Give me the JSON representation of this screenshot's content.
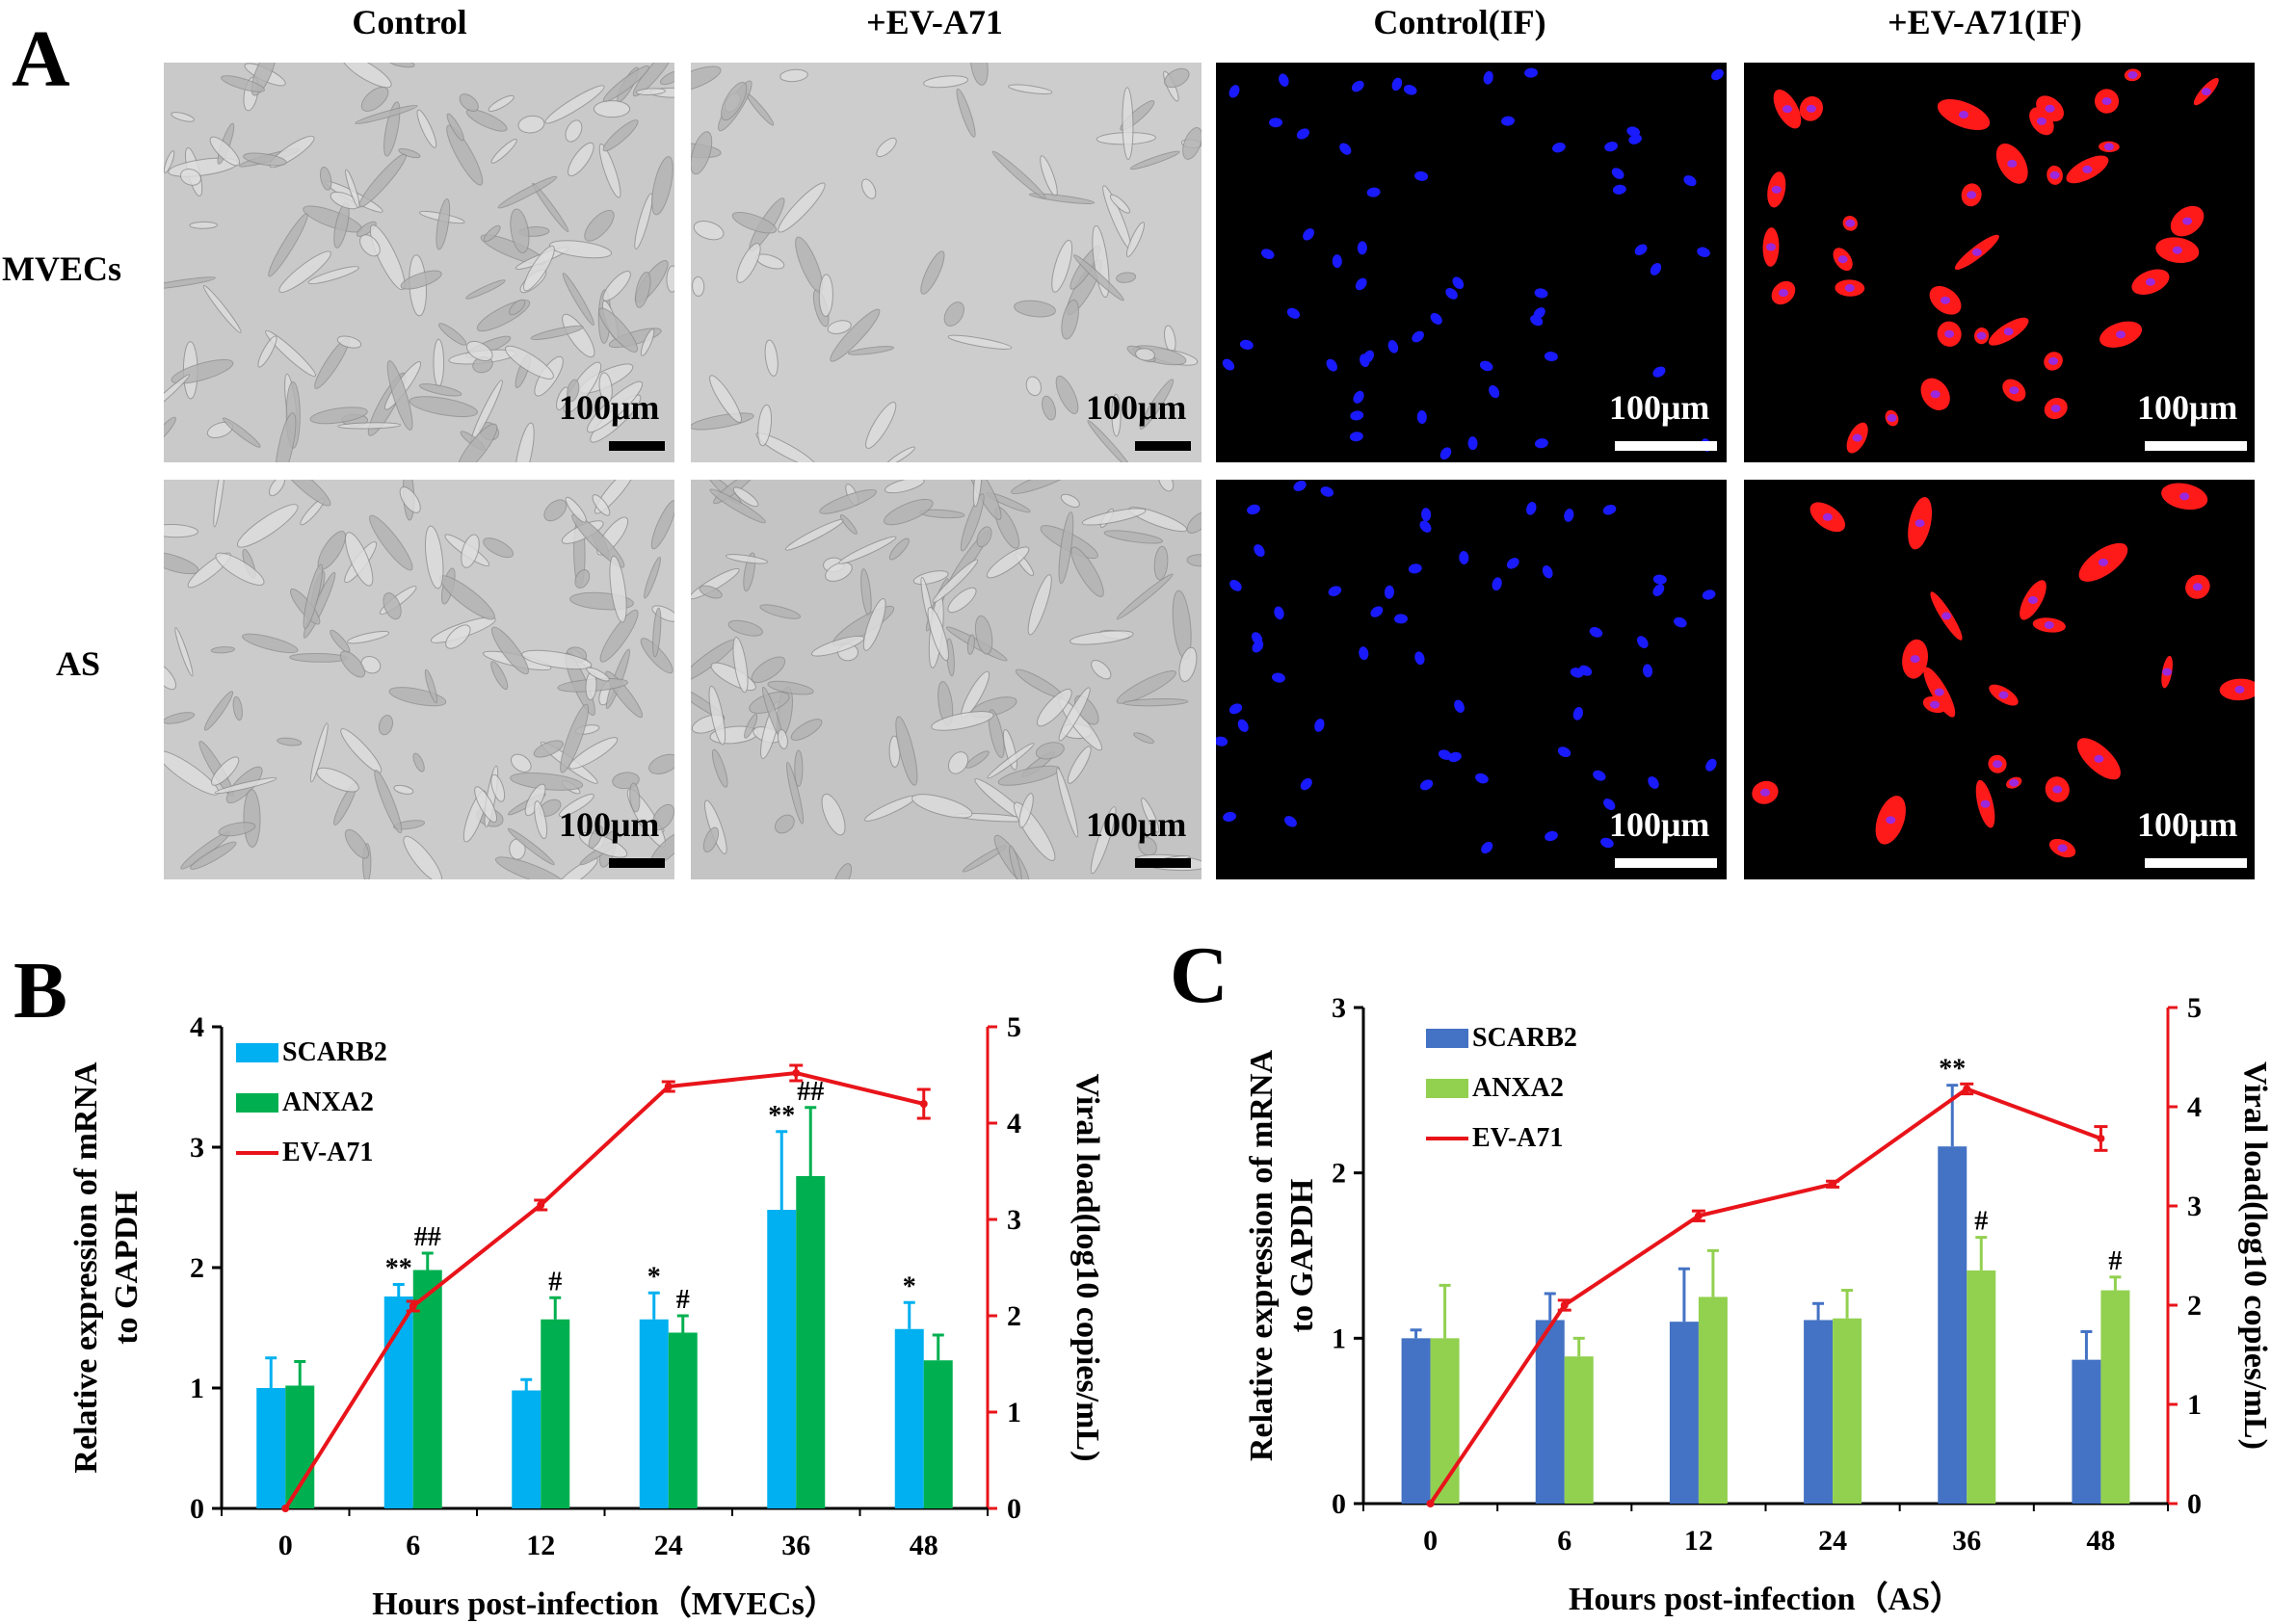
{
  "panelA": {
    "letter": "A",
    "columns": [
      "Control",
      "+EV-A71",
      "Control(IF)",
      "+EV-A71(IF)"
    ],
    "rows": [
      "MVECs",
      "AS"
    ],
    "scale_label": "100μm"
  },
  "colors": {
    "brightfield": "#c9c9c9",
    "if_background": "#000000",
    "nucleus": "#1a1aff",
    "virus": "#ff1a1a",
    "scalebar_bright": "#000000",
    "scalebar_if": "#ffffff",
    "scarb2_B": "#00b0f0",
    "anxa2_B": "#00b050",
    "scarb2_C": "#4472c4",
    "anxa2_C": "#92d050",
    "ev_line": "#e8141a"
  },
  "chart_data": [
    {
      "panel": "B",
      "type": "bar",
      "categories": [
        "0",
        "6",
        "12",
        "24",
        "36",
        "48"
      ],
      "xlabel": "Hours post-infection（MVECs）",
      "ylabel": "Relative expression of mRNA to GAPDH",
      "y2label": "Viral load(log10 copies/mL)",
      "ylim": [
        0,
        4
      ],
      "yticks": [
        "0",
        "1",
        "2",
        "3",
        "4"
      ],
      "y2lim": [
        0,
        5
      ],
      "y2ticks": [
        "0",
        "1",
        "2",
        "3",
        "4",
        "5"
      ],
      "legend": [
        "SCARB2",
        "ANXA2",
        "EV-A71"
      ],
      "legend_position": "top-left",
      "series": [
        {
          "name": "SCARB2",
          "type": "bar",
          "values": [
            1.0,
            1.76,
            0.98,
            1.57,
            2.48,
            1.49
          ],
          "errors": [
            0.25,
            0.1,
            0.09,
            0.22,
            0.65,
            0.22
          ],
          "marks": [
            "",
            "**",
            "",
            "*",
            "**",
            "*"
          ]
        },
        {
          "name": "ANXA2",
          "type": "bar",
          "values": [
            1.02,
            1.98,
            1.57,
            1.46,
            2.76,
            1.23
          ],
          "errors": [
            0.2,
            0.14,
            0.18,
            0.14,
            0.57,
            0.21
          ],
          "marks": [
            "",
            "##",
            "#",
            "#",
            "##",
            ""
          ]
        },
        {
          "name": "EV-A71",
          "type": "line",
          "axis": "right",
          "values": [
            0,
            2.1,
            3.15,
            4.38,
            4.52,
            4.2
          ],
          "errors": [
            0,
            0.05,
            0.05,
            0.05,
            0.08,
            0.15
          ]
        }
      ]
    },
    {
      "panel": "C",
      "type": "bar",
      "categories": [
        "0",
        "6",
        "12",
        "24",
        "36",
        "48"
      ],
      "xlabel": "Hours post-infection（AS）",
      "ylabel": "Relative expression of mRNA to GAPDH",
      "y2label": "Viral load(log10 copies/mL)",
      "ylim": [
        0,
        3
      ],
      "yticks": [
        "0",
        "1",
        "2",
        "3"
      ],
      "y2lim": [
        0,
        5
      ],
      "y2ticks": [
        "0",
        "1",
        "2",
        "3",
        "4",
        "5"
      ],
      "legend": [
        "SCARB2",
        "ANXA2",
        "EV-A71"
      ],
      "legend_position": "top-left",
      "series": [
        {
          "name": "SCARB2",
          "type": "bar",
          "values": [
            1.0,
            1.11,
            1.1,
            1.11,
            2.16,
            0.87
          ],
          "errors": [
            0.05,
            0.16,
            0.32,
            0.1,
            0.37,
            0.17
          ],
          "marks": [
            "",
            "",
            "",
            "",
            "**",
            ""
          ]
        },
        {
          "name": "ANXA2",
          "type": "bar",
          "values": [
            1.0,
            0.89,
            1.25,
            1.12,
            1.41,
            1.29
          ],
          "errors": [
            0.32,
            0.11,
            0.28,
            0.17,
            0.2,
            0.08
          ],
          "marks": [
            "",
            "",
            "",
            "",
            "#",
            "#"
          ]
        },
        {
          "name": "EV-A71",
          "type": "line",
          "axis": "right",
          "values": [
            0,
            2.0,
            2.9,
            3.22,
            4.18,
            3.68
          ],
          "errors": [
            0,
            0.05,
            0.05,
            0.03,
            0.05,
            0.12
          ]
        }
      ]
    }
  ]
}
